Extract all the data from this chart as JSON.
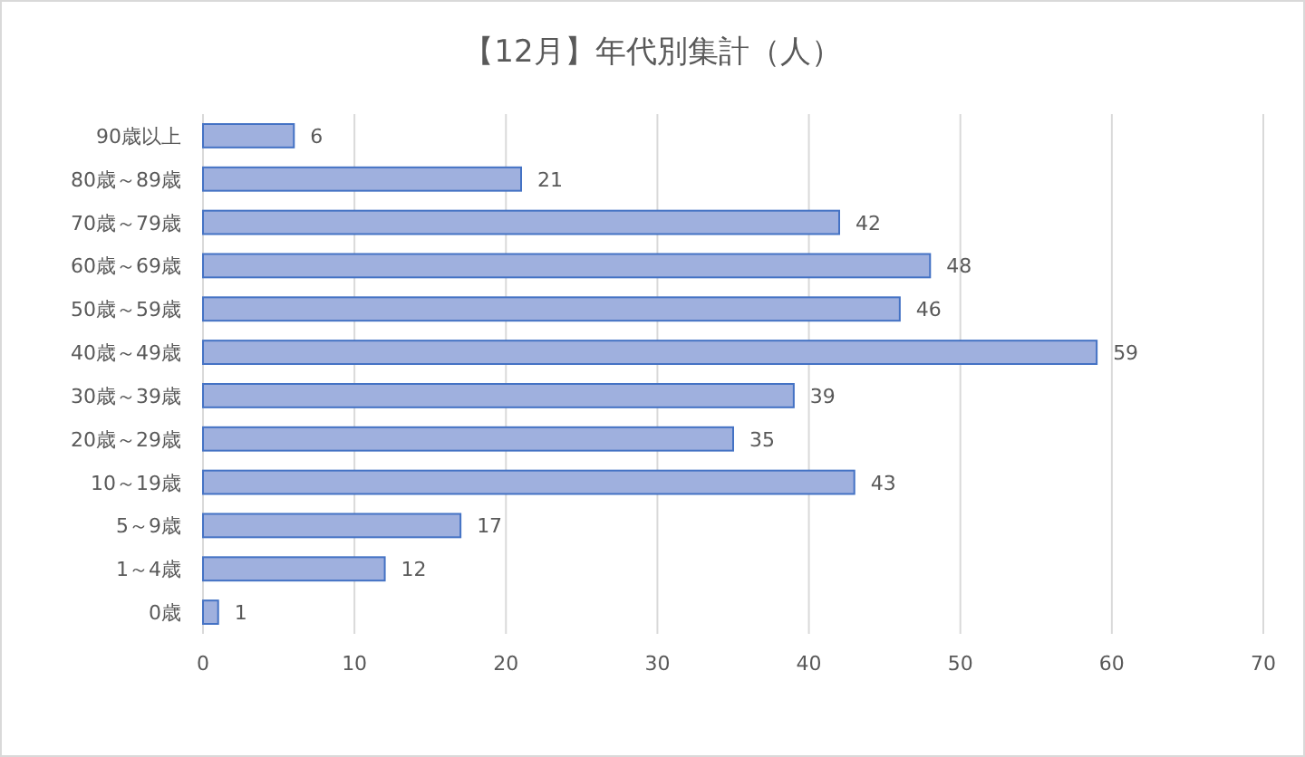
{
  "chart_data": {
    "type": "bar",
    "orientation": "horizontal",
    "title": "【12月】年代別集計（人）",
    "categories": [
      "90歳以上",
      "80歳～89歳",
      "70歳～79歳",
      "60歳～69歳",
      "50歳～59歳",
      "40歳～49歳",
      "30歳～39歳",
      "20歳～29歳",
      "10～19歳",
      "5～9歳",
      "1～4歳",
      "0歳"
    ],
    "values": [
      6,
      21,
      42,
      48,
      46,
      59,
      39,
      35,
      43,
      17,
      12,
      1
    ],
    "color": "#9fb0de",
    "xlim": [
      0,
      70
    ],
    "xticks": [
      0,
      10,
      20,
      30,
      40,
      50,
      60,
      70
    ],
    "grid": "x",
    "data_labels": true
  }
}
